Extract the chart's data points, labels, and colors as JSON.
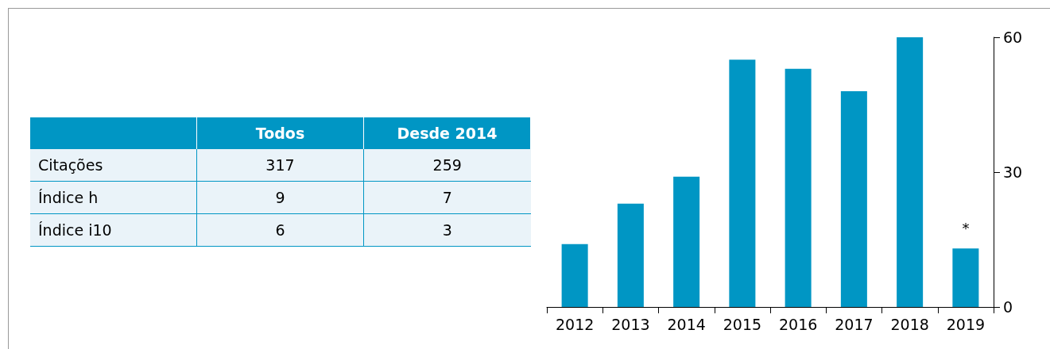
{
  "chart_data": [
    {
      "type": "other",
      "categories": [
        "Todos",
        "Desde 2014"
      ],
      "y_categories": [
        "Citações",
        "Índice h",
        "Índice i10"
      ],
      "cell_labels": [
        [
          "317",
          "259"
        ],
        [
          "9",
          "7"
        ],
        [
          "6",
          "3"
        ]
      ],
      "color": "#0096c4"
    },
    {
      "type": "bar",
      "categories": [
        "2012",
        "2013",
        "2014",
        "2015",
        "2016",
        "2017",
        "2018",
        "2019"
      ],
      "values": [
        14,
        23,
        29,
        55,
        53,
        48,
        60,
        13
      ],
      "color": "#0096c4",
      "ylim": [
        0,
        60
      ],
      "yticks": [
        0,
        30,
        60
      ],
      "grid": false,
      "annotations": [
        "*"
      ]
    }
  ]
}
